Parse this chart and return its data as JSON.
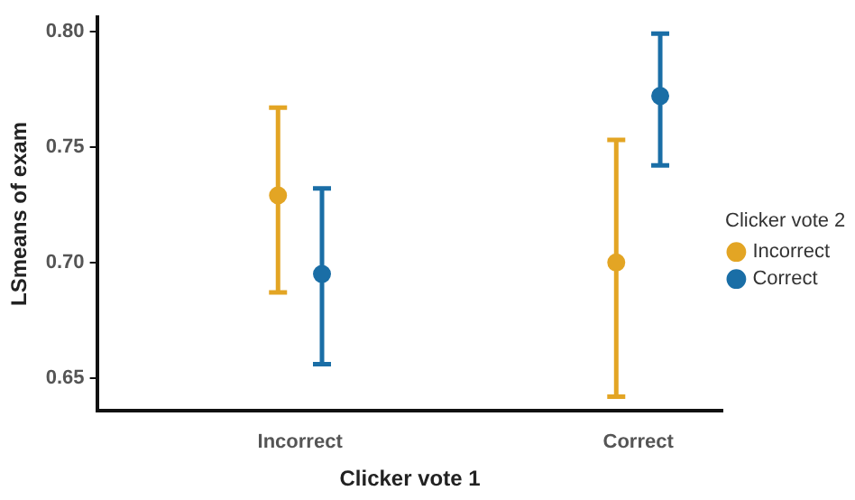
{
  "chart_data": {
    "type": "scatter",
    "xlabel": "Clicker vote 1",
    "ylabel": "LSmeans of exam",
    "legend_title": "Clicker vote 2",
    "categories": [
      "Incorrect",
      "Correct"
    ],
    "series": [
      {
        "name": "Incorrect",
        "color": "#e3a524",
        "values": [
          0.729,
          0.7
        ],
        "errors": [
          [
            0.687,
            0.767
          ],
          [
            0.642,
            0.753
          ]
        ]
      },
      {
        "name": "Correct",
        "color": "#1a6ea6",
        "values": [
          0.695,
          0.772
        ],
        "errors": [
          [
            0.656,
            0.732
          ],
          [
            0.742,
            0.799
          ]
        ]
      }
    ],
    "ylim": [
      0.636,
      0.806
    ],
    "yticks": [
      0.65,
      {
        "value": 0.7,
        "label": "0.70"
      },
      0.75,
      {
        "value": 0.8,
        "label": "0.80"
      }
    ],
    "grid": false,
    "legend": "right",
    "marker": "circle"
  }
}
